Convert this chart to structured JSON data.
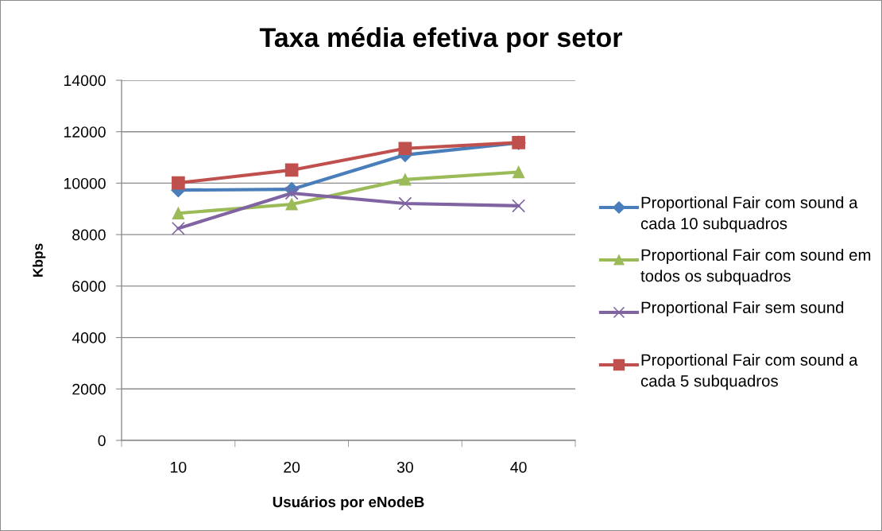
{
  "chart_data": {
    "type": "line",
    "title": "Taxa média efetiva por setor",
    "xlabel": "Usuários por eNodeB",
    "ylabel": "Kbps",
    "categories": [
      "10",
      "20",
      "30",
      "40"
    ],
    "ylim": [
      0,
      14000
    ],
    "yticks": [
      0,
      2000,
      4000,
      6000,
      8000,
      10000,
      12000,
      14000
    ],
    "grid": "y",
    "legend": "right",
    "line_style": "solid",
    "series": [
      {
        "name": "Proportional Fair com sound a cada 10 subquadros",
        "color": "#4a7ebb",
        "marker": "diamond",
        "values": [
          9730,
          9760,
          11100,
          11570
        ]
      },
      {
        "name": "Proportional Fair com sound em todos os subquadros",
        "color": "#9bbb59",
        "marker": "triangle",
        "values": [
          8830,
          9180,
          10140,
          10430
        ]
      },
      {
        "name": "Proportional Fair sem sound",
        "color": "#8064a2",
        "marker": "cross",
        "values": [
          8240,
          9610,
          9210,
          9120
        ]
      },
      {
        "name": "Proportional Fair com sound a cada 5 subquadros",
        "color": "#c0504d",
        "marker": "square",
        "values": [
          10010,
          10510,
          11350,
          11580
        ]
      }
    ]
  }
}
